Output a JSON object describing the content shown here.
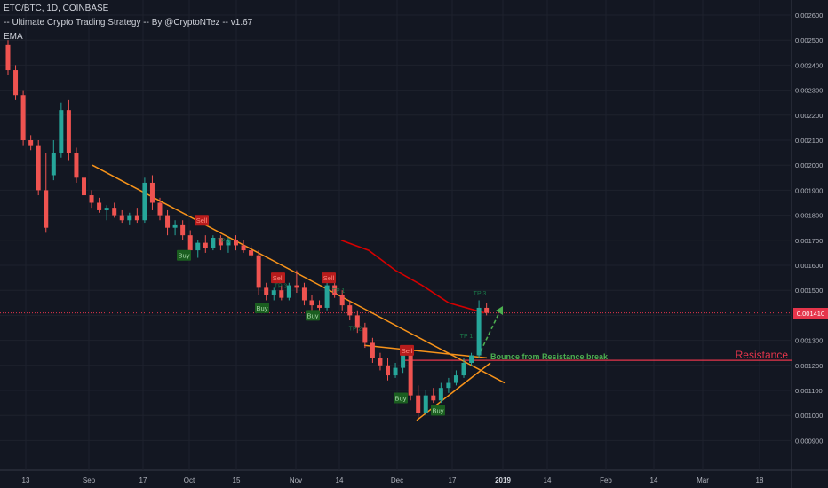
{
  "header": {
    "symbol_line": "ETC/BTC, 1D, COINBASE",
    "strategy_line": "-- Ultimate Crypto Trading Strategy -- By @CryptoNTez -- v1.67",
    "ema_label": "EMA"
  },
  "current_price_label": "0.001410",
  "annotations": {
    "bounce": "Bounce from Resistance break",
    "resistance": "Resistance"
  },
  "colors": {
    "background": "#131722",
    "grid": "#1e222d",
    "bullish": "#26a69a",
    "bearish": "#ef5350",
    "trendline": "#f7931a",
    "ema": "#d50000",
    "resistance": "#e5354b",
    "buy_signal": "#1b5e20",
    "sell_signal": "#b71c1c",
    "bounce_text": "#4caf50"
  },
  "chart_data": {
    "type": "candlestick",
    "y_axis": {
      "ticks": [
        "0.002600",
        "0.002500",
        "0.002400",
        "0.002300",
        "0.002200",
        "0.002100",
        "0.002000",
        "0.001900",
        "0.001800",
        "0.001700",
        "0.001600",
        "0.001500",
        "0.001400",
        "0.001300",
        "0.001200",
        "0.001100",
        "0.001000",
        "0.000900"
      ],
      "range": [
        0.00085,
        0.00265
      ]
    },
    "x_axis": {
      "ticks": [
        "13",
        "Sep",
        "17",
        "Oct",
        "15",
        "Nov",
        "14",
        "Dec",
        "17",
        "2019",
        "14",
        "Feb",
        "14",
        "Mar",
        "18"
      ],
      "bold_tick": "2019"
    },
    "current_price": 0.00141,
    "resistance_level": 0.00122,
    "ema_points": [
      [
        0.0017,
        0.00168
      ],
      [
        0.00166,
        0.00162
      ],
      [
        0.00158,
        0.00155
      ],
      [
        0.00152,
        0.00148
      ],
      [
        0.00145,
        0.00142
      ],
      [
        0.00141,
        0.0014
      ]
    ],
    "signals": [
      {
        "label": "Sell",
        "kind": "sell",
        "price": 0.00178
      },
      {
        "label": "Buy",
        "kind": "buy",
        "price": 0.00164
      },
      {
        "label": "Buy",
        "kind": "buy",
        "price": 0.00143
      },
      {
        "label": "Sell",
        "kind": "sell",
        "price": 0.00155
      },
      {
        "label": "Buy",
        "kind": "buy",
        "price": 0.0014
      },
      {
        "label": "Sell",
        "kind": "sell",
        "price": 0.00155
      },
      {
        "label": "Sell",
        "kind": "sell",
        "price": 0.00126
      },
      {
        "label": "Buy",
        "kind": "buy",
        "price": 0.00107
      },
      {
        "label": "Buy",
        "kind": "buy",
        "price": 0.00102
      }
    ],
    "tp_marks": [
      "TP 3",
      "TP 1",
      "TP 2",
      "TP 3",
      "TP 3",
      "TP 1"
    ],
    "candles": [
      [
        0.00248,
        0.0025,
        0.00236,
        0.00238
      ],
      [
        0.00238,
        0.0024,
        0.00226,
        0.00228
      ],
      [
        0.00228,
        0.0023,
        0.00208,
        0.0021
      ],
      [
        0.0021,
        0.00212,
        0.00206,
        0.00208
      ],
      [
        0.00208,
        0.0021,
        0.00188,
        0.0019
      ],
      [
        0.0019,
        0.00205,
        0.00173,
        0.00175
      ],
      [
        0.00196,
        0.0021,
        0.00194,
        0.00205
      ],
      [
        0.00205,
        0.00225,
        0.00203,
        0.00222
      ],
      [
        0.00222,
        0.00226,
        0.00202,
        0.00205
      ],
      [
        0.00205,
        0.00207,
        0.00193,
        0.00195
      ],
      [
        0.00195,
        0.00197,
        0.00187,
        0.00188
      ],
      [
        0.00188,
        0.0019,
        0.00183,
        0.00185
      ],
      [
        0.00185,
        0.00187,
        0.00181,
        0.00182
      ],
      [
        0.00182,
        0.00184,
        0.00178,
        0.00183
      ],
      [
        0.00183,
        0.00185,
        0.00179,
        0.0018
      ],
      [
        0.0018,
        0.00182,
        0.00177,
        0.00178
      ],
      [
        0.00178,
        0.00181,
        0.00176,
        0.0018
      ],
      [
        0.0018,
        0.00183,
        0.00177,
        0.00178
      ],
      [
        0.00178,
        0.00195,
        0.00177,
        0.00193
      ],
      [
        0.00193,
        0.00196,
        0.00182,
        0.00185
      ],
      [
        0.00185,
        0.00187,
        0.00178,
        0.0018
      ],
      [
        0.0018,
        0.00182,
        0.00172,
        0.00175
      ],
      [
        0.00175,
        0.00178,
        0.00172,
        0.00176
      ],
      [
        0.00176,
        0.00178,
        0.0017,
        0.00172
      ],
      [
        0.00172,
        0.00174,
        0.00164,
        0.00166
      ],
      [
        0.00166,
        0.0017,
        0.00163,
        0.00169
      ],
      [
        0.00169,
        0.00172,
        0.00165,
        0.00167
      ],
      [
        0.00167,
        0.00172,
        0.00166,
        0.00171
      ],
      [
        0.00171,
        0.00172,
        0.00166,
        0.00168
      ],
      [
        0.00168,
        0.00171,
        0.00165,
        0.0017
      ],
      [
        0.0017,
        0.00172,
        0.00166,
        0.00168
      ],
      [
        0.00168,
        0.0017,
        0.00165,
        0.00166
      ],
      [
        0.00166,
        0.00168,
        0.00163,
        0.00164
      ],
      [
        0.00164,
        0.00166,
        0.00148,
        0.00151
      ],
      [
        0.00151,
        0.00153,
        0.00146,
        0.00148
      ],
      [
        0.00148,
        0.00151,
        0.00146,
        0.0015
      ],
      [
        0.0015,
        0.00152,
        0.00146,
        0.00147
      ],
      [
        0.00147,
        0.00153,
        0.00146,
        0.00152
      ],
      [
        0.00152,
        0.00158,
        0.00149,
        0.00151
      ],
      [
        0.00151,
        0.00153,
        0.00144,
        0.00146
      ],
      [
        0.00146,
        0.00148,
        0.00142,
        0.00144
      ],
      [
        0.00144,
        0.00146,
        0.00142,
        0.00143
      ],
      [
        0.00143,
        0.00154,
        0.00142,
        0.00152
      ],
      [
        0.00152,
        0.00154,
        0.00147,
        0.00148
      ],
      [
        0.00148,
        0.0015,
        0.00142,
        0.00144
      ],
      [
        0.00144,
        0.00146,
        0.00138,
        0.0014
      ],
      [
        0.0014,
        0.00142,
        0.00133,
        0.00135
      ],
      [
        0.00135,
        0.00137,
        0.00127,
        0.00129
      ],
      [
        0.00129,
        0.00131,
        0.00121,
        0.00123
      ],
      [
        0.00123,
        0.00125,
        0.00118,
        0.0012
      ],
      [
        0.0012,
        0.00123,
        0.00114,
        0.00116
      ],
      [
        0.00116,
        0.00121,
        0.00115,
        0.00119
      ],
      [
        0.00119,
        0.00127,
        0.00117,
        0.00125
      ],
      [
        0.00125,
        0.00126,
        0.00106,
        0.00108
      ],
      [
        0.00108,
        0.00112,
        0.00099,
        0.00101
      ],
      [
        0.00101,
        0.0011,
        0.001,
        0.00108
      ],
      [
        0.00108,
        0.00111,
        0.00105,
        0.00106
      ],
      [
        0.00106,
        0.00113,
        0.00105,
        0.00111
      ],
      [
        0.00111,
        0.00115,
        0.00109,
        0.00113
      ],
      [
        0.00113,
        0.00118,
        0.00112,
        0.00116
      ],
      [
        0.00116,
        0.00123,
        0.00115,
        0.00121
      ],
      [
        0.00121,
        0.00125,
        0.0012,
        0.00124
      ],
      [
        0.00124,
        0.00146,
        0.00123,
        0.00143
      ],
      [
        0.00143,
        0.00145,
        0.0014,
        0.00141
      ]
    ]
  }
}
